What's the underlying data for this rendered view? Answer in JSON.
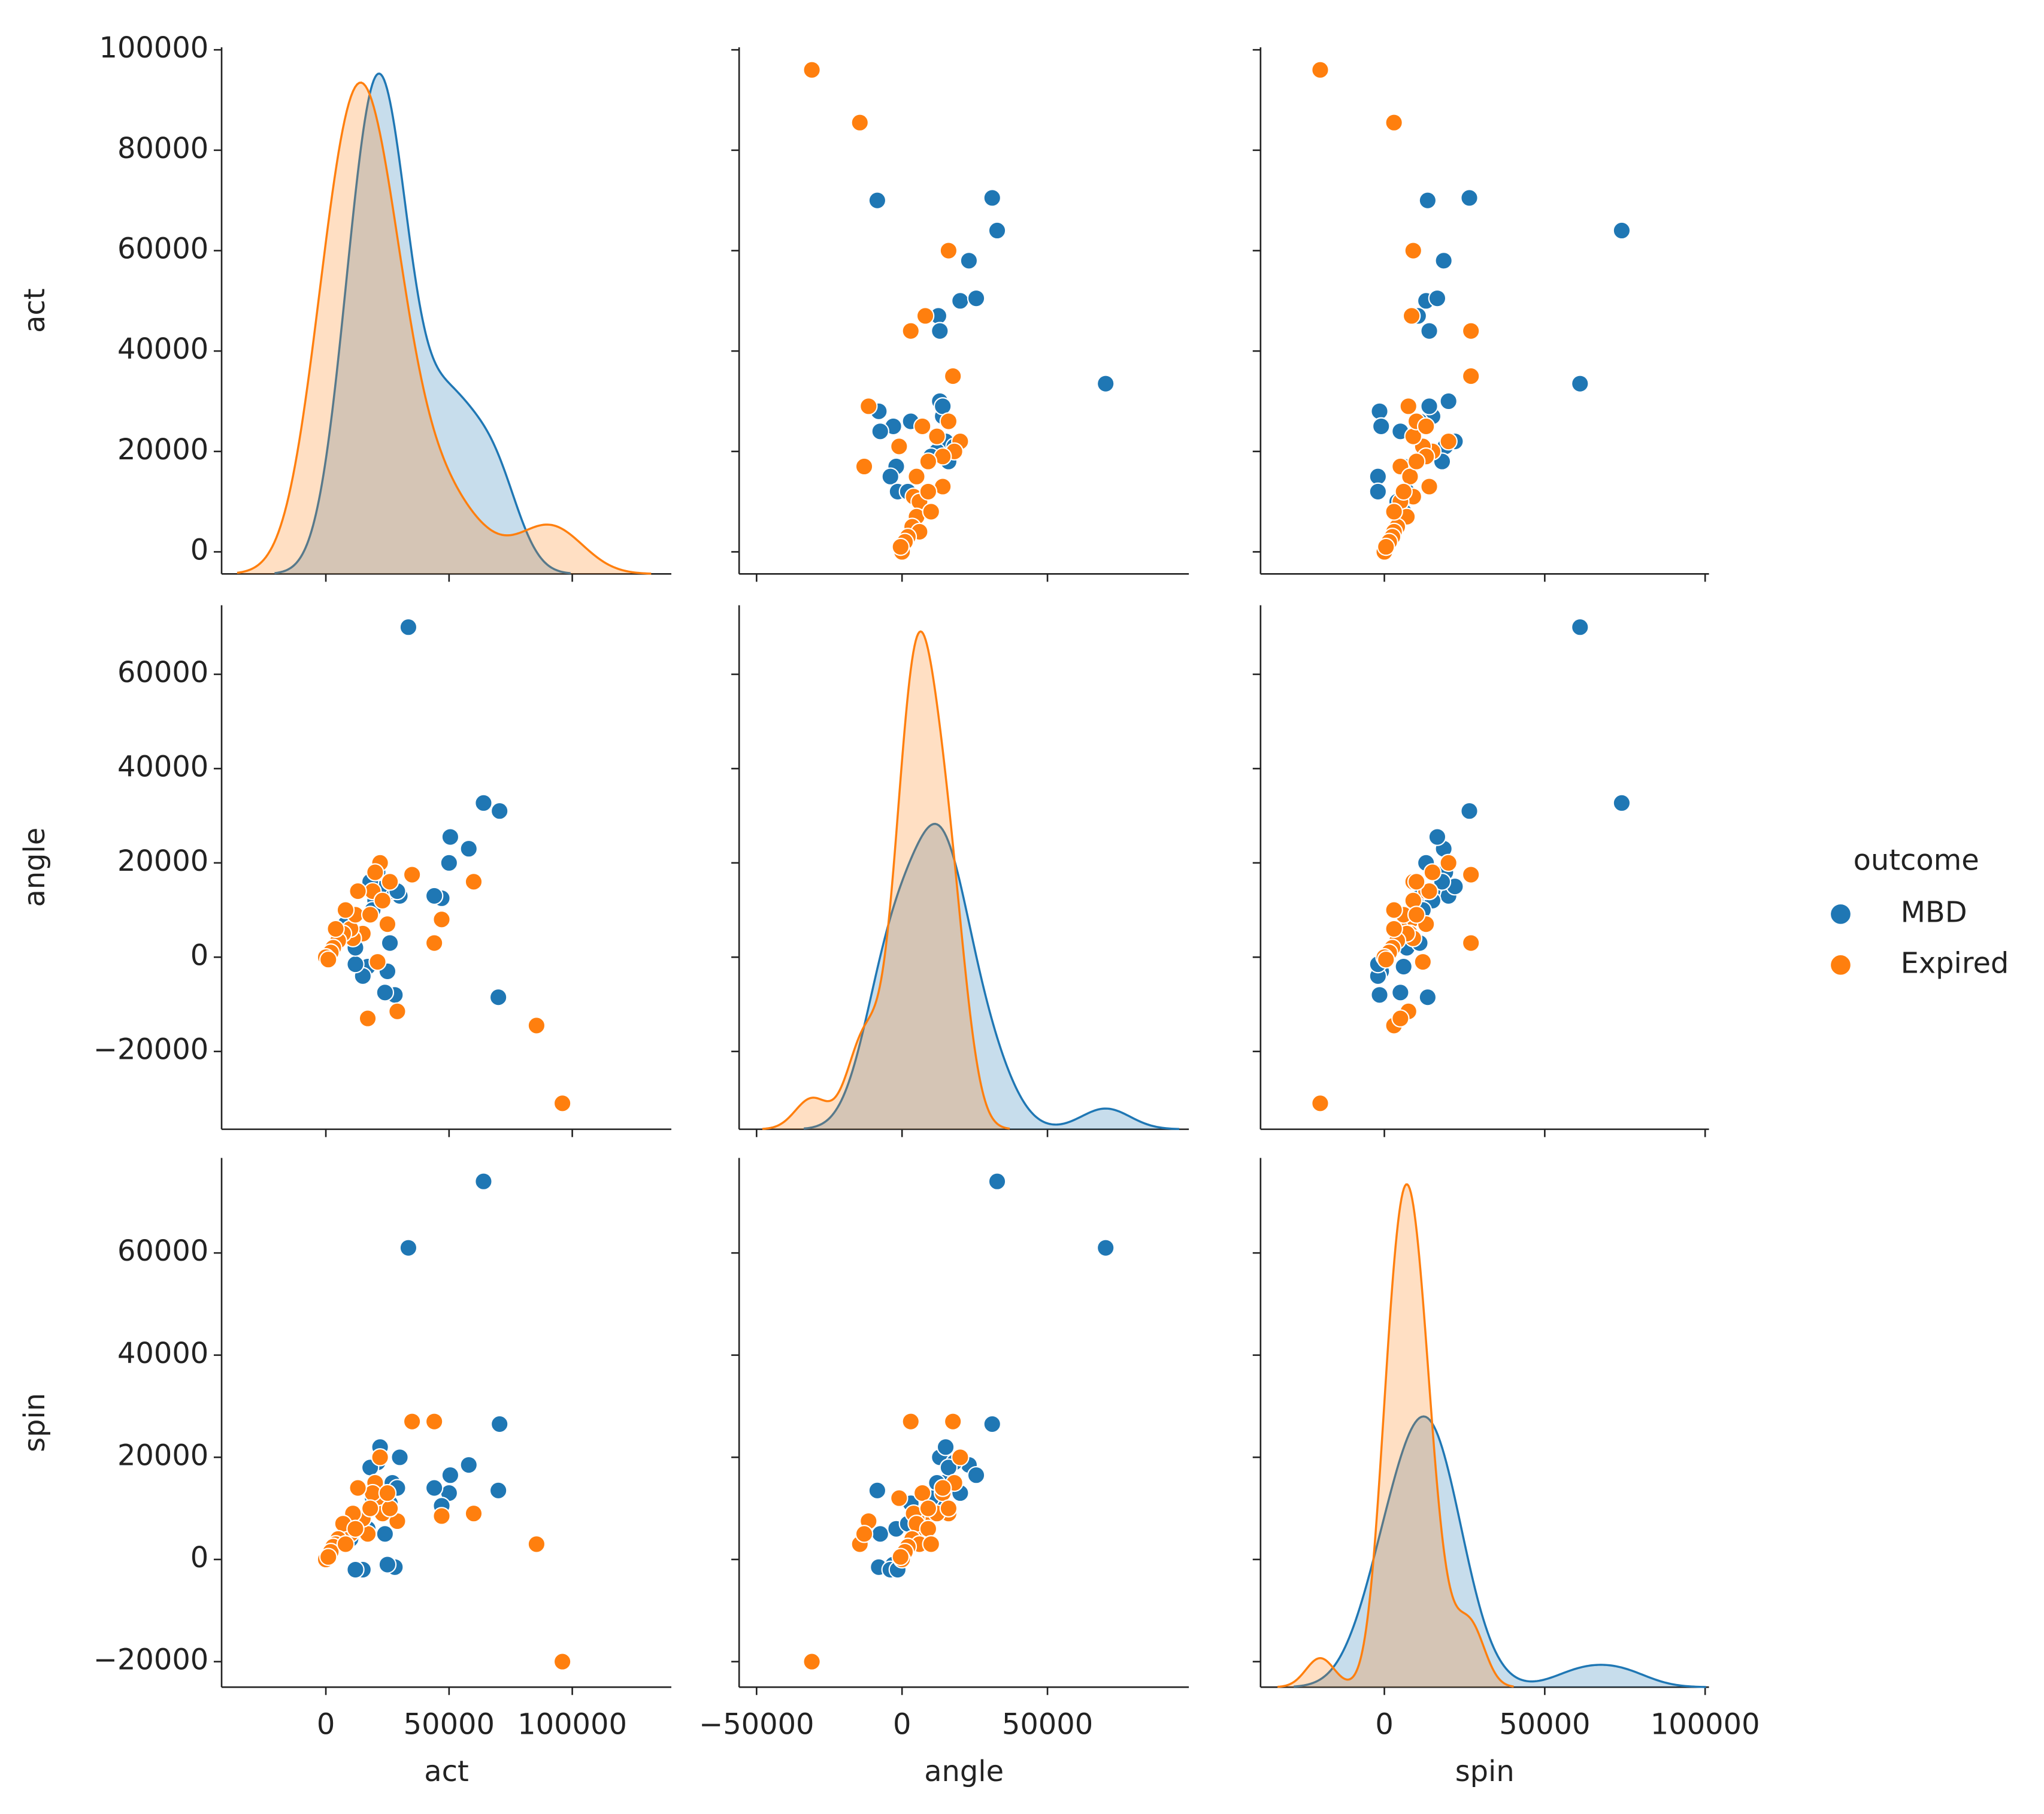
{
  "chart_data": {
    "type": "pairplot",
    "variables": [
      "act",
      "angle",
      "spin"
    ],
    "axes": {
      "act": {
        "xlim": [
          -42300,
          140200
        ],
        "ylim": [
          -4400,
          100500
        ],
        "xticks": [
          0,
          50000,
          100000
        ],
        "yticks": [
          0,
          20000,
          40000,
          60000,
          80000,
          100000
        ]
      },
      "angle": {
        "xlim": [
          -56000,
          98600
        ],
        "ylim": [
          -36500,
          74650
        ],
        "xticks": [
          {
            "value": -50000,
            "label": "−50000"
          },
          0,
          50000
        ],
        "yticks": [
          {
            "value": -20000,
            "label": "−20000"
          },
          0,
          20000,
          40000,
          60000
        ]
      },
      "spin": {
        "xlim": [
          -38600,
          101200
        ],
        "ylim": [
          -25000,
          78600
        ],
        "xticks": [
          0,
          50000,
          100000
        ],
        "yticks": [
          {
            "value": -20000,
            "label": "−20000"
          },
          0,
          20000,
          40000,
          60000
        ]
      }
    },
    "legend_title": "outcome",
    "legend": "right",
    "series": [
      {
        "name": "MBD",
        "color": "#1f77b4",
        "act": [
          70000,
          70500,
          64000,
          33500,
          58000,
          50000,
          50500,
          47000,
          44000,
          30000,
          28000,
          27000,
          25000,
          24000,
          22000,
          21000,
          20000,
          18000,
          17000,
          15000,
          12000,
          12000,
          10000,
          26000,
          29000,
          8000,
          19000
        ],
        "angle": [
          -8500,
          31000,
          32700,
          70000,
          23000,
          20000,
          25500,
          12500,
          13000,
          13000,
          -8000,
          14000,
          -3000,
          -7500,
          15000,
          18000,
          12000,
          16000,
          -2000,
          -4000,
          -1500,
          2000,
          6000,
          3000,
          14000,
          7000,
          10000
        ],
        "spin": [
          13500,
          26500,
          74000,
          61000,
          18500,
          13000,
          16500,
          10500,
          14000,
          20000,
          -1500,
          15000,
          -1000,
          5000,
          22000,
          19000,
          15000,
          18000,
          6000,
          -2000,
          -2000,
          7000,
          4000,
          11000,
          14000,
          6000,
          12000
        ]
      },
      {
        "name": "Expired",
        "color": "#ff7f0e",
        "act": [
          96000,
          85500,
          60000,
          47000,
          44000,
          35000,
          29000,
          17000,
          22000,
          20000,
          21000,
          19000,
          23000,
          13000,
          26000,
          15000,
          11000,
          10000,
          7000,
          5000,
          4000,
          3000,
          2000,
          0,
          1000,
          12000,
          8000,
          25000,
          18000
        ],
        "angle": [
          -31000,
          -14500,
          16000,
          8000,
          3000,
          17500,
          -11500,
          -13000,
          20000,
          18000,
          -1000,
          14000,
          12000,
          14000,
          16000,
          5000,
          4000,
          6000,
          5000,
          3500,
          6000,
          2000,
          1000,
          0,
          -500,
          9000,
          10000,
          7000,
          9000
        ],
        "spin": [
          -20000,
          3000,
          9000,
          8500,
          27000,
          27000,
          7500,
          5000,
          20000,
          15000,
          12000,
          13000,
          9000,
          14000,
          10000,
          8000,
          9000,
          5000,
          7000,
          4000,
          3000,
          2500,
          1500,
          0,
          500,
          6000,
          3000,
          13000,
          10000
        ]
      }
    ]
  }
}
